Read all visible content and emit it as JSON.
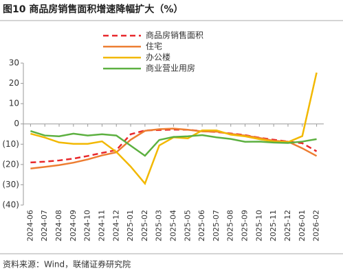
{
  "chart_data": {
    "type": "line",
    "title": "图10 商品房销售面积增速降幅扩大（%）",
    "source": "资料来源：Wind，联储证券研究院",
    "categories": [
      "2024-06",
      "2024-07",
      "2024-08",
      "2024-09",
      "2024-10",
      "2024-11",
      "2024-12",
      "2025-01",
      "2025-02",
      "2025-03",
      "2025-04",
      "2025-05",
      "2025-06",
      "2025-07",
      "2025-08",
      "2025-09",
      "2025-10",
      "2025-11",
      "2025-12",
      "2026-01",
      "2026-02"
    ],
    "series": [
      {
        "name": "商品房销售面积",
        "color": "#e8272a",
        "dashed": true,
        "values": [
          -19.0,
          -18.6,
          -18.0,
          -17.1,
          -15.8,
          -14.3,
          -12.9,
          -5.1,
          -3.2,
          -3.0,
          -2.8,
          -2.9,
          -3.5,
          -4.0,
          -4.7,
          -5.5,
          -6.8,
          -7.8,
          -8.7,
          -9.5,
          -13.5
        ]
      },
      {
        "name": "住宅",
        "color": "#ed7d31",
        "values": [
          -22.0,
          -21.2,
          -20.3,
          -19.1,
          -17.5,
          -15.5,
          -14.0,
          -7.8,
          -3.4,
          -2.6,
          -2.3,
          -2.9,
          -3.7,
          -3.8,
          -4.9,
          -5.7,
          -6.9,
          -8.3,
          -8.7,
          -12.0,
          -15.8
        ]
      },
      {
        "name": "办公楼",
        "color": "#f2b800",
        "values": [
          -4.8,
          -6.7,
          -9.1,
          -9.8,
          -9.8,
          -8.6,
          -13.8,
          -21.0,
          -29.4,
          -10.6,
          -6.6,
          -7.1,
          -3.2,
          -3.2,
          -5.3,
          -6.1,
          -7.5,
          -8.7,
          -9.0,
          -6.0,
          25.3
        ]
      },
      {
        "name": "商业营业用房",
        "color": "#5cb040",
        "values": [
          -3.5,
          -5.7,
          -6.1,
          -4.8,
          -5.7,
          -5.1,
          -5.7,
          -10.7,
          -15.7,
          -7.9,
          -6.4,
          -6.1,
          -5.5,
          -6.6,
          -7.4,
          -8.8,
          -8.7,
          -9.2,
          -9.4,
          -8.7,
          -7.5
        ]
      }
    ],
    "ylim": [
      -40,
      30
    ],
    "yticks": [
      30,
      20,
      10,
      0,
      {
        "value": -10,
        "label": "(10)"
      },
      {
        "value": -20,
        "label": "(20)"
      },
      {
        "value": -30,
        "label": "(30)"
      },
      {
        "value": -40,
        "label": "(40)"
      }
    ]
  }
}
